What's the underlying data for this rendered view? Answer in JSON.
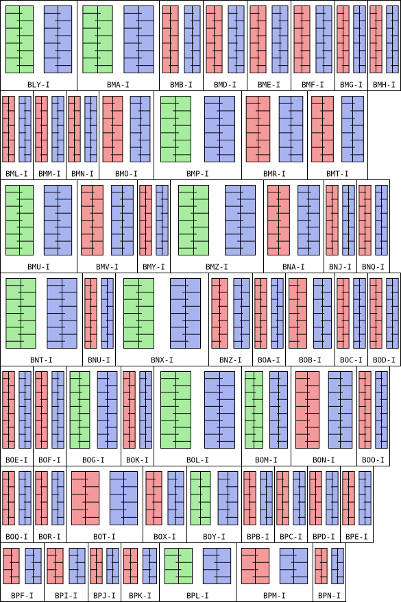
{
  "rows": [
    [
      {
        "label": "BLY-I",
        "colors": [
          "#a8eca0",
          "#a8b4f0"
        ]
      },
      {
        "label": "BMA-I",
        "colors": [
          "#a8eca0",
          "#a8b4f0"
        ]
      },
      {
        "label": "BMB-I",
        "colors": [
          "#f49a9a",
          "#a8b4f0"
        ]
      },
      {
        "label": "BMD-I",
        "colors": [
          "#f49a9a",
          "#a8b4f0"
        ]
      },
      {
        "label": "BME-I",
        "colors": [
          "#f49a9a",
          "#a8b4f0"
        ]
      },
      {
        "label": "BMF-I",
        "colors": [
          "#f49a9a",
          "#a8b4f0"
        ]
      },
      {
        "label": "BMG-I",
        "colors": [
          "#f49a9a",
          "#a8b4f0"
        ]
      },
      {
        "label": "BMH-I",
        "colors": [
          "#f49a9a",
          "#a8b4f0"
        ]
      }
    ],
    [
      {
        "label": "BML-I",
        "colors": [
          "#f49a9a",
          "#a8b4f0"
        ]
      },
      {
        "label": "BMM-I",
        "colors": [
          "#f49a9a",
          "#a8b4f0"
        ]
      },
      {
        "label": "BMN-I",
        "colors": [
          "#f49a9a",
          "#a8b4f0"
        ]
      },
      {
        "label": "BMO-I",
        "colors": [
          "#f49a9a",
          "#a8b4f0"
        ]
      },
      {
        "label": "BMP-I",
        "colors": [
          "#a8eca0",
          "#a8b4f0"
        ]
      },
      {
        "label": "BMR-I",
        "colors": [
          "#f49a9a",
          "#a8b4f0"
        ]
      },
      {
        "label": "BMT-I",
        "colors": [
          "#f49a9a",
          "#a8b4f0"
        ]
      }
    ],
    [
      {
        "label": "BMU-I",
        "colors": [
          "#a8eca0",
          "#a8b4f0"
        ]
      },
      {
        "label": "BMV-I",
        "colors": [
          "#f49a9a",
          "#a8b4f0"
        ]
      },
      {
        "label": "BMY-I",
        "colors": [
          "#f49a9a",
          "#a8b4f0"
        ]
      },
      {
        "label": "BMZ-I",
        "colors": [
          "#a8eca0",
          "#a8b4f0"
        ]
      },
      {
        "label": "BNA-I",
        "colors": [
          "#f49a9a",
          "#a8b4f0"
        ]
      },
      {
        "label": "BNJ-I",
        "colors": [
          "#f49a9a",
          "#a8b4f0"
        ]
      },
      {
        "label": "BNQ-I",
        "colors": [
          "#f49a9a",
          "#a8b4f0"
        ]
      }
    ],
    [
      {
        "label": "BNT-I",
        "colors": [
          "#a8eca0",
          "#a8b4f0"
        ]
      },
      {
        "label": "BNU-I",
        "colors": [
          "#f49a9a",
          "#a8b4f0"
        ]
      },
      {
        "label": "BNX-I",
        "colors": [
          "#a8eca0",
          "#a8b4f0"
        ]
      },
      {
        "label": "BNZ-I",
        "colors": [
          "#f49a9a",
          "#a8b4f0"
        ]
      },
      {
        "label": "BOA-I",
        "colors": [
          "#f49a9a",
          "#a8b4f0"
        ]
      },
      {
        "label": "BOB-I",
        "colors": [
          "#f49a9a",
          "#a8b4f0"
        ]
      },
      {
        "label": "BOC-I",
        "colors": [
          "#f49a9a",
          "#a8b4f0"
        ]
      },
      {
        "label": "BOD-I",
        "colors": [
          "#f49a9a",
          "#a8b4f0"
        ]
      }
    ],
    [
      {
        "label": "BOE-I",
        "colors": [
          "#f49a9a",
          "#a8b4f0"
        ]
      },
      {
        "label": "BOF-I",
        "colors": [
          "#f49a9a",
          "#a8b4f0"
        ]
      },
      {
        "label": "BOG-I",
        "colors": [
          "#a8eca0",
          "#a8b4f0"
        ]
      },
      {
        "label": "BOK-I",
        "colors": [
          "#f49a9a",
          "#a8b4f0"
        ]
      },
      {
        "label": "BOL-I",
        "colors": [
          "#a8eca0",
          "#a8b4f0"
        ]
      },
      {
        "label": "BOM-I",
        "colors": [
          "#a8eca0",
          "#a8b4f0"
        ]
      },
      {
        "label": "BON-I",
        "colors": [
          "#f49a9a",
          "#a8b4f0"
        ]
      },
      {
        "label": "BOO-I",
        "colors": [
          "#f49a9a",
          "#a8b4f0"
        ]
      }
    ],
    [
      {
        "label": "BOQ-I",
        "colors": [
          "#f49a9a",
          "#a8b4f0"
        ]
      },
      {
        "label": "BOR-I",
        "colors": [
          "#f49a9a",
          "#a8b4f0"
        ]
      },
      {
        "label": "BOT-I",
        "colors": [
          "#f49a9a",
          "#a8b4f0"
        ]
      },
      {
        "label": "BOX-I",
        "colors": [
          "#f49a9a",
          "#a8b4f0"
        ]
      },
      {
        "label": "BOY-I",
        "colors": [
          "#a8eca0",
          "#a8b4f0"
        ]
      },
      {
        "label": "BPB-I",
        "colors": [
          "#f49a9a",
          "#a8b4f0"
        ]
      },
      {
        "label": "BPC-I",
        "colors": [
          "#f49a9a",
          "#a8b4f0"
        ]
      },
      {
        "label": "BPD-I",
        "colors": [
          "#f49a9a",
          "#a8b4f0"
        ]
      },
      {
        "label": "BPE-I",
        "colors": [
          "#f49a9a",
          "#a8b4f0"
        ]
      }
    ],
    [
      {
        "label": "BPF-I",
        "colors": [
          "#f49a9a",
          "#a8b4f0"
        ]
      },
      {
        "label": "BPI-I",
        "colors": [
          "#f49a9a",
          "#a8b4f0"
        ]
      },
      {
        "label": "BPJ-I",
        "colors": [
          "#f49a9a",
          "#a8b4f0"
        ]
      },
      {
        "label": "BPK-I",
        "colors": [
          "#f49a9a",
          "#a8b4f0"
        ]
      },
      {
        "label": "BPL-I",
        "colors": [
          "#a8eca0",
          "#a8b4f0"
        ]
      },
      {
        "label": "BPM-I",
        "colors": [
          "#f49a9a",
          "#a8b4f0"
        ]
      },
      {
        "label": "BPN-I",
        "colors": [
          "#f49a9a",
          "#a8b4f0"
        ]
      }
    ]
  ]
}
